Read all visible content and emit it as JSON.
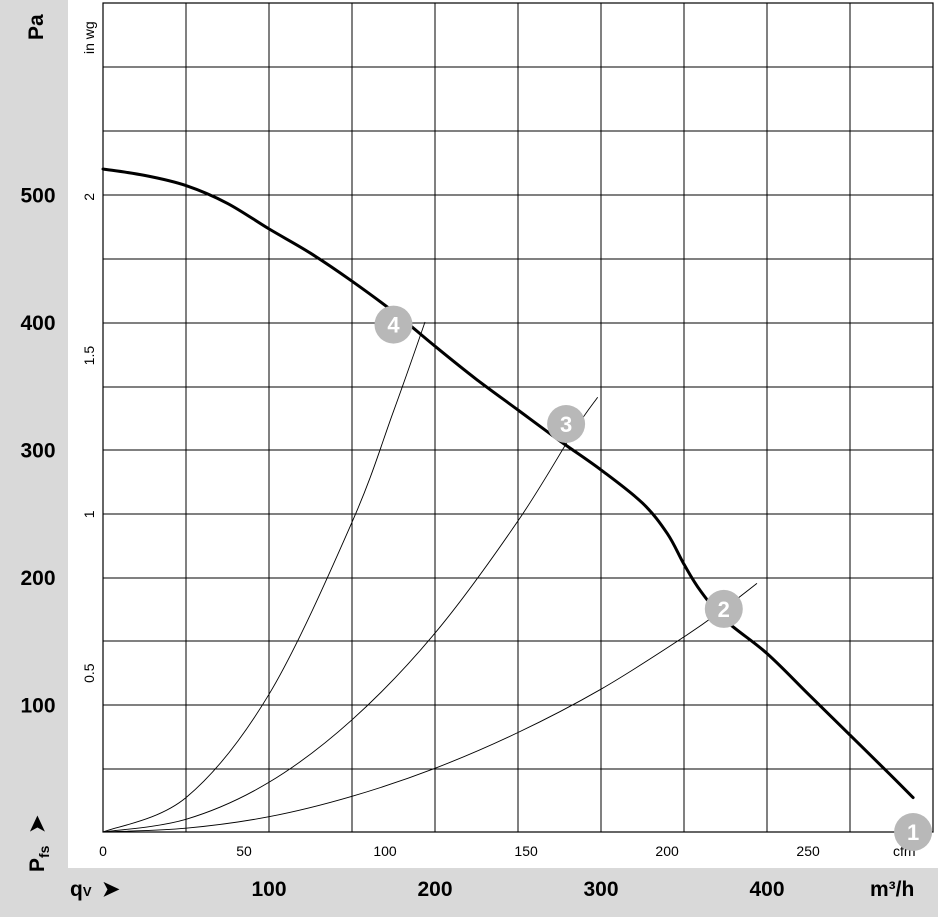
{
  "chart_data": {
    "type": "line",
    "y_axis_left": {
      "unit": "Pa",
      "symbol": "P",
      "symbol_subscript": "fs",
      "arrow": "➤",
      "ticks": [
        100,
        200,
        300,
        400,
        500
      ],
      "range": [
        0,
        520
      ]
    },
    "y_axis_inner": {
      "unit": "in wg",
      "ticks": [
        "0.5",
        "1",
        "1.5",
        "2"
      ]
    },
    "x_axis_bottom": {
      "unit": "m³/h",
      "symbol": "q",
      "symbol_subscript": "V",
      "arrow": "➤",
      "ticks": [
        100,
        200,
        300,
        400
      ],
      "range": [
        0,
        500
      ]
    },
    "x_axis_inner": {
      "unit": "cfm",
      "ticks": [
        "0",
        "50",
        "100",
        "150",
        "200",
        "250"
      ]
    },
    "grid": true,
    "series": [
      {
        "kind": "fan-curve",
        "x": [
          0,
          25,
          50,
          75,
          100,
          125,
          150,
          175,
          200,
          225,
          250,
          275,
          300,
          325,
          340,
          350,
          360,
          375,
          400,
          425,
          450,
          475,
          488
        ],
        "y": [
          520,
          515,
          507,
          493,
          473,
          454,
          432,
          408,
          381,
          355,
          331,
          307,
          284,
          258,
          234,
          210,
          189,
          166,
          140,
          108,
          76,
          44,
          27
        ]
      },
      {
        "kind": "system-curve",
        "x": [
          0,
          50,
          100,
          150,
          200,
          250,
          300,
          350,
          374,
          394
        ],
        "y": [
          0,
          3,
          12,
          28,
          50,
          78,
          112,
          153,
          175,
          195
        ]
      },
      {
        "kind": "system-curve",
        "x": [
          0,
          50,
          100,
          150,
          200,
          250,
          284,
          298
        ],
        "y": [
          0,
          10,
          39,
          88,
          156,
          244,
          315,
          341
        ]
      },
      {
        "kind": "system-curve",
        "x": [
          0,
          50,
          100,
          150,
          175,
          194
        ],
        "y": [
          0,
          27,
          108,
          243,
          330,
          400
        ]
      }
    ],
    "operating_points": [
      {
        "label": "1",
        "x": 488,
        "y": 0
      },
      {
        "label": "2",
        "x": 374,
        "y": 175
      },
      {
        "label": "3",
        "x": 279,
        "y": 320
      },
      {
        "label": "4",
        "x": 175,
        "y": 398
      }
    ]
  }
}
